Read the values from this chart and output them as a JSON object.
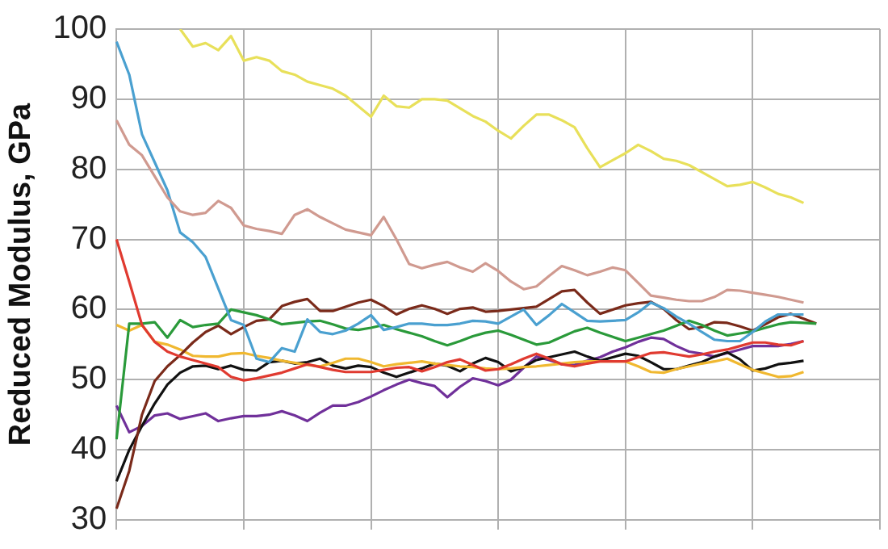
{
  "chart_data": {
    "type": "line",
    "ylabel": "Reduced Modulus, GPa",
    "categories": [
      null,
      null,
      null,
      null,
      null,
      null,
      null,
      null,
      null,
      null,
      null,
      null,
      null,
      null,
      null,
      null,
      null,
      null,
      null,
      null,
      null,
      null,
      null,
      null,
      null,
      null,
      null,
      null,
      null,
      null,
      null,
      null,
      null,
      null,
      null,
      null,
      null,
      null,
      null,
      null,
      null,
      null,
      null,
      null,
      null,
      null,
      null,
      null,
      null,
      null,
      null,
      null,
      null,
      null,
      null,
      null,
      null,
      null,
      null,
      null,
      null
    ],
    "ylim": [
      30,
      100
    ],
    "yticks": [
      30,
      40,
      50,
      60,
      70,
      80,
      90,
      100
    ],
    "grid": true,
    "tick_labels": "y",
    "line_style": "solid",
    "series": [
      {
        "color": "#e8e05a",
        "values": [
          null,
          null,
          null,
          null,
          null,
          100,
          97.5,
          98,
          97,
          99,
          95.5,
          96,
          95.5,
          94,
          93.5,
          92.5,
          92,
          91.5,
          90.5,
          89,
          87.5,
          90.5,
          89,
          88.8,
          90,
          90,
          89.8,
          88.7,
          87.6,
          86.8,
          85.5,
          84.4,
          86.2,
          87.8,
          87.8,
          87,
          86,
          83,
          80.3,
          81.3,
          82.3,
          83.5,
          82.6,
          81.5,
          81.2,
          80.6,
          79.6,
          78.6,
          77.6,
          77.8,
          78.2,
          77.4,
          76.5,
          76,
          75.2,
          null,
          null,
          null,
          null,
          null,
          null
        ]
      },
      {
        "color": "#d09a90",
        "values": [
          87,
          83.5,
          82,
          79,
          76,
          74,
          73.5,
          73.8,
          75.5,
          74.5,
          72,
          71.5,
          71.2,
          70.8,
          73.5,
          74.3,
          73.2,
          72.3,
          71.4,
          71,
          70.6,
          73.2,
          70,
          66.5,
          65.9,
          66.4,
          66.8,
          66,
          65.4,
          66.6,
          65.5,
          64,
          62.9,
          63.3,
          64.8,
          66.2,
          65.6,
          64.9,
          65.4,
          66,
          65.6,
          63.8,
          62,
          61.7,
          61.4,
          61.2,
          61.2,
          61.8,
          62.8,
          62.7,
          62.4,
          62.1,
          61.8,
          61.4,
          61,
          null,
          null,
          null,
          null,
          null,
          null
        ]
      },
      {
        "color": "#4aa0d0",
        "values": [
          98.2,
          93.5,
          85,
          81,
          77,
          71,
          69.6,
          67.5,
          63,
          58.5,
          57.8,
          53,
          52.5,
          54.5,
          54,
          58.6,
          56.8,
          56.5,
          57,
          58,
          59.2,
          57.1,
          57.5,
          58,
          58,
          57.8,
          57.8,
          58,
          58.4,
          58.3,
          58,
          59,
          60,
          57.8,
          59.2,
          60.8,
          59.6,
          58.4,
          58.3,
          58.4,
          58.5,
          59.6,
          61,
          60.2,
          59,
          58,
          56.8,
          55.7,
          55.5,
          55.5,
          56.8,
          58.3,
          59.3,
          59.3,
          59.3,
          null,
          null,
          null,
          null,
          null,
          null
        ]
      },
      {
        "color": "#e03a30",
        "values": [
          70,
          64,
          57.8,
          55.4,
          54,
          53.3,
          52.8,
          52.3,
          51.8,
          50.4,
          49.9,
          50.2,
          50.6,
          51,
          51.6,
          52.2,
          51.8,
          51.4,
          51.1,
          51.1,
          51.1,
          51.4,
          51.7,
          51.8,
          51.2,
          51.8,
          52.5,
          52.9,
          52.1,
          51.3,
          51.5,
          52.2,
          53,
          53.7,
          53,
          52.2,
          51.9,
          52.3,
          52.6,
          52.6,
          52.6,
          53.2,
          53.8,
          53.9,
          53.6,
          53.3,
          53.6,
          54,
          54.3,
          54.8,
          55.3,
          55.3,
          55,
          54.9,
          55.5,
          null,
          null,
          null,
          null,
          null,
          null
        ]
      },
      {
        "color": "#2a9a3a",
        "values": [
          41.5,
          58,
          58,
          58.2,
          56,
          58.5,
          57.5,
          57.8,
          58,
          60,
          59.6,
          59.2,
          58.6,
          57.9,
          58.1,
          58.3,
          58.4,
          57.9,
          57.3,
          57.1,
          57.4,
          57.8,
          57.2,
          56.7,
          56.2,
          55.5,
          54.9,
          55.5,
          56.2,
          56.7,
          57,
          56.4,
          55.7,
          55,
          55.3,
          56.1,
          56.9,
          57.4,
          56.7,
          56.1,
          55.5,
          56,
          56.5,
          57,
          57.7,
          58.4,
          57.8,
          57,
          56.3,
          56.6,
          56.9,
          57.4,
          57.9,
          58.2,
          58.1,
          58,
          null,
          null,
          null,
          null,
          null
        ]
      },
      {
        "color": "#7a2a1a",
        "values": [
          31.6,
          37,
          45,
          49.8,
          51.9,
          53.5,
          55.3,
          56.8,
          57.7,
          56.5,
          57.5,
          58.4,
          58.6,
          60.5,
          61.1,
          61.5,
          59.8,
          59.8,
          60.4,
          61,
          61.4,
          60.5,
          59.3,
          60.1,
          60.6,
          60.1,
          59.4,
          60.1,
          60.3,
          59.7,
          59.8,
          60,
          60.2,
          60.4,
          61.5,
          62.6,
          62.8,
          61,
          59.4,
          60,
          60.6,
          60.9,
          61.1,
          60.1,
          58.5,
          57.2,
          57.5,
          58.2,
          58.1,
          57.6,
          57,
          57.9,
          58.9,
          59.4,
          58.7,
          58,
          null,
          null,
          null,
          null,
          null
        ]
      },
      {
        "color": "#f0b830",
        "values": [
          57.8,
          57,
          57.8,
          55.4,
          55,
          54.3,
          53.4,
          53.3,
          53.3,
          53.7,
          53.8,
          53.4,
          53.1,
          52.7,
          52.4,
          52.1,
          51.9,
          52.4,
          53,
          53,
          52.5,
          51.9,
          52.2,
          52.4,
          52.6,
          52.3,
          52.1,
          51.9,
          51.8,
          51.6,
          51.5,
          51.6,
          51.8,
          51.9,
          52.1,
          52.3,
          52.5,
          52.6,
          52.6,
          52.6,
          52.6,
          51.9,
          51.1,
          51,
          51.5,
          51.9,
          52.3,
          52.6,
          53,
          52.2,
          51.4,
          50.9,
          50.4,
          50.5,
          51.1,
          null,
          null,
          null,
          null,
          null,
          null
        ]
      },
      {
        "color": "#111111",
        "values": [
          35.5,
          40,
          43.4,
          46.6,
          49.3,
          51,
          51.9,
          52,
          51.5,
          52,
          51.4,
          51.3,
          52.5,
          52.7,
          52.3,
          52.5,
          53,
          52,
          51.6,
          52,
          51.8,
          51,
          50.4,
          51,
          51.6,
          52.3,
          52,
          51.2,
          52.3,
          53.1,
          52.5,
          51.2,
          51.8,
          52.8,
          53.2,
          53.6,
          54,
          53.3,
          52.7,
          53.2,
          53.7,
          53.4,
          52.5,
          51.5,
          51.5,
          52,
          52.5,
          53.3,
          53.9,
          52.9,
          51.3,
          51.6,
          52.2,
          52.4,
          52.7,
          null,
          null,
          null,
          null,
          null,
          null
        ]
      },
      {
        "color": "#70309a",
        "values": [
          46.3,
          42.5,
          43.4,
          44.9,
          45.2,
          44.4,
          44.8,
          45.2,
          44.1,
          44.5,
          44.8,
          44.8,
          45,
          45.5,
          44.9,
          44.1,
          45.3,
          46.3,
          46.3,
          46.8,
          47.6,
          48.5,
          49.3,
          50,
          49.5,
          49.1,
          47.5,
          49,
          50.2,
          49.8,
          49.2,
          50,
          51.7,
          53.3,
          52.8,
          52.2,
          52.1,
          52.7,
          53.2,
          54,
          54.6,
          55.4,
          56,
          55.8,
          54.8,
          54,
          53.7,
          53.3,
          53.8,
          54.3,
          54.8,
          54.8,
          54.8,
          55.1,
          55.5,
          null,
          null,
          null,
          null,
          null,
          null
        ]
      }
    ]
  }
}
